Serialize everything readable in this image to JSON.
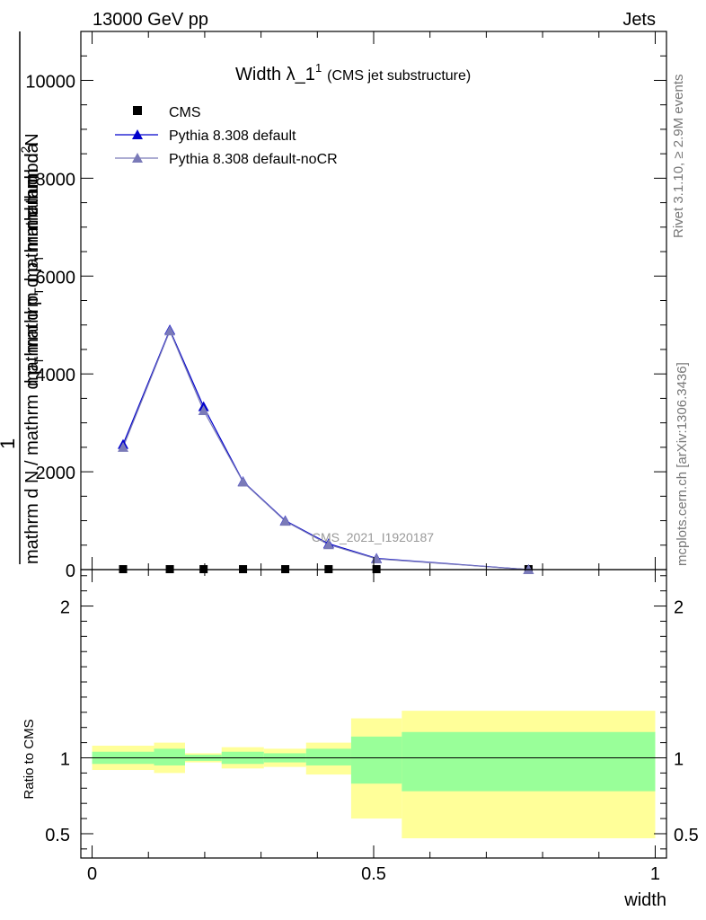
{
  "header": {
    "left": "13000 GeV pp",
    "right": "Jets"
  },
  "side_labels": {
    "rivet": "Rivet 3.1.10, ≥ 2.9M events",
    "mcplots": "mcplots.cern.ch [arXiv:1306.3436]"
  },
  "chart_data": {
    "type": "line",
    "title_main": "Width λ_1",
    "title_sup": "1",
    "title_sub": "(CMS jet substructure)",
    "watermark": "CMS_2021_I1920187",
    "ylabel_top_num": "mathrm d",
    "ylabel_top_exp": "2",
    "ylabel_top_N": "N",
    "ylabel_top_den": "mathrm d p",
    "ylabel_top_den_sub": "T",
    "ylabel_top_den_end": " mathrm d lambda",
    "ylabel_one": "1",
    "ylabel_bottom_a": "mathrm d N / mathrm d p",
    "ylabel_bottom_a_sub": "T",
    "ylabel_bottom_b": "mathrm d p",
    "ylabel_bottom_b_sub": "T",
    "ylabel_bottom_c": "mathrm d",
    "xlabel": "width",
    "ratio_ylabel": "Ratio to CMS",
    "xlim": [
      -0.02,
      1.02
    ],
    "ylim": [
      0,
      11000
    ],
    "ratio_ylim": [
      0.34,
      2.24
    ],
    "x_ticks": [
      {
        "v": 0,
        "label": "0"
      },
      {
        "v": 0.5,
        "label": "0.5"
      },
      {
        "v": 1,
        "label": "1"
      }
    ],
    "y_ticks": [
      {
        "v": 0,
        "label": "0"
      },
      {
        "v": 2000,
        "label": "2000"
      },
      {
        "v": 4000,
        "label": "4000"
      },
      {
        "v": 6000,
        "label": "6000"
      },
      {
        "v": 8000,
        "label": "8000"
      },
      {
        "v": 10000,
        "label": "10000"
      }
    ],
    "ratio_ticks": [
      {
        "v": 0.5,
        "label": "0.5"
      },
      {
        "v": 1,
        "label": "1"
      },
      {
        "v": 2,
        "label": "2"
      }
    ],
    "bins": [
      {
        "lo": 0.0,
        "hi": 0.11,
        "band_inner": [
          0.96,
          1.04
        ],
        "band_outer": [
          0.92,
          1.08
        ]
      },
      {
        "lo": 0.11,
        "hi": 0.165,
        "band_inner": [
          0.95,
          1.06
        ],
        "band_outer": [
          0.9,
          1.1
        ]
      },
      {
        "lo": 0.165,
        "hi": 0.23,
        "band_inner": [
          0.98,
          1.02
        ],
        "band_outer": [
          0.97,
          1.03
        ]
      },
      {
        "lo": 0.23,
        "hi": 0.305,
        "band_inner": [
          0.96,
          1.04
        ],
        "band_outer": [
          0.93,
          1.07
        ]
      },
      {
        "lo": 0.305,
        "hi": 0.38,
        "band_inner": [
          0.97,
          1.03
        ],
        "band_outer": [
          0.94,
          1.06
        ]
      },
      {
        "lo": 0.38,
        "hi": 0.46,
        "band_inner": [
          0.95,
          1.06
        ],
        "band_outer": [
          0.89,
          1.1
        ]
      },
      {
        "lo": 0.46,
        "hi": 0.55,
        "band_inner": [
          0.83,
          1.14
        ],
        "band_outer": [
          0.6,
          1.26
        ]
      },
      {
        "lo": 0.55,
        "hi": 1.0,
        "band_inner": [
          0.78,
          1.17
        ],
        "band_outer": [
          0.47,
          1.31
        ]
      }
    ],
    "series": [
      {
        "name": "CMS",
        "color": "#000000",
        "marker": "square",
        "x": [
          0.055,
          0.138,
          0.198,
          0.268,
          0.343,
          0.42,
          0.505,
          0.775
        ],
        "y": [
          0,
          0,
          0,
          0,
          0,
          0,
          0,
          0
        ]
      },
      {
        "name": "Pythia 8.308 default",
        "color": "#0000cc",
        "marker": "triangle",
        "x": [
          0.055,
          0.138,
          0.198,
          0.268,
          0.343,
          0.42,
          0.505,
          0.775
        ],
        "y": [
          2560,
          4900,
          3330,
          1800,
          1000,
          530,
          230,
          0
        ]
      },
      {
        "name": "Pythia 8.308 default-noCR",
        "color": "#7a7ab8",
        "marker": "triangle",
        "x": [
          0.055,
          0.138,
          0.198,
          0.268,
          0.343,
          0.42,
          0.505,
          0.775
        ],
        "y": [
          2500,
          4880,
          3250,
          1790,
          990,
          510,
          220,
          0
        ]
      }
    ],
    "colors": {
      "band_outer": "#ffff99",
      "band_inner": "#99ff99"
    }
  }
}
